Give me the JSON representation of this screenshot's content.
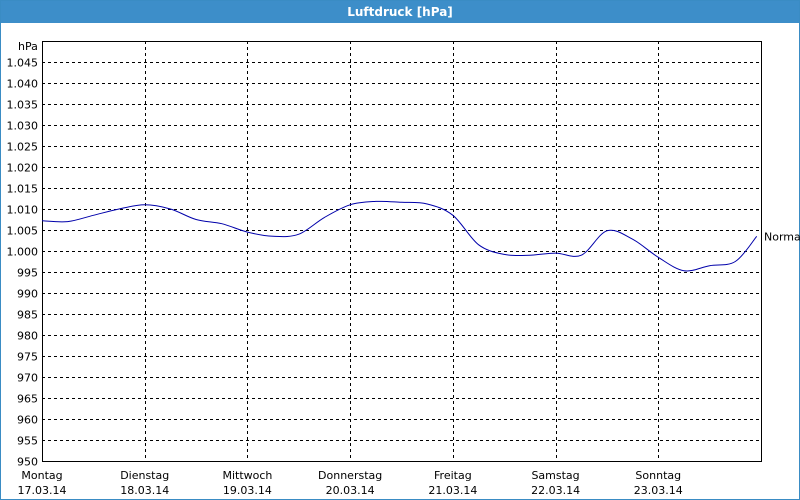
{
  "window": {
    "title": "Luftdruck [hPa]"
  },
  "chart_data": {
    "type": "line",
    "ylabel": "hPa",
    "ylim": [
      950,
      1050
    ],
    "yticks": [
      {
        "value": 950,
        "label": "950"
      },
      {
        "value": 955,
        "label": "955"
      },
      {
        "value": 960,
        "label": "960"
      },
      {
        "value": 965,
        "label": "965"
      },
      {
        "value": 970,
        "label": "970"
      },
      {
        "value": 975,
        "label": "975"
      },
      {
        "value": 980,
        "label": "980"
      },
      {
        "value": 985,
        "label": "985"
      },
      {
        "value": 990,
        "label": "990"
      },
      {
        "value": 995,
        "label": "995"
      },
      {
        "value": 1000,
        "label": "1.000"
      },
      {
        "value": 1005,
        "label": "1.005"
      },
      {
        "value": 1010,
        "label": "1.010"
      },
      {
        "value": 1015,
        "label": "1.015"
      },
      {
        "value": 1020,
        "label": "1.020"
      },
      {
        "value": 1025,
        "label": "1.025"
      },
      {
        "value": 1030,
        "label": "1.030"
      },
      {
        "value": 1035,
        "label": "1.035"
      },
      {
        "value": 1040,
        "label": "1.040"
      },
      {
        "value": 1045,
        "label": "1.045"
      }
    ],
    "xlim": [
      "17.03.14 00:00",
      "24.03.14 00:00"
    ],
    "xticks": [
      {
        "day": "Montag",
        "date": "17.03.14"
      },
      {
        "day": "Dienstag",
        "date": "18.03.14"
      },
      {
        "day": "Mittwoch",
        "date": "19.03.14"
      },
      {
        "day": "Donnerstag",
        "date": "20.03.14"
      },
      {
        "day": "Freitag",
        "date": "21.03.14"
      },
      {
        "day": "Samstag",
        "date": "22.03.14"
      },
      {
        "day": "Sonntag",
        "date": "23.03.14"
      }
    ],
    "grid": true,
    "line_color": "#0000aa",
    "annotation": "Normal",
    "series": [
      {
        "x": [
          "17.03.14 00:00",
          "17.03.14 06:00",
          "17.03.14 12:00",
          "17.03.14 18:00",
          "18.03.14 00:00",
          "18.03.14 06:00",
          "18.03.14 12:00",
          "18.03.14 18:00",
          "19.03.14 00:00",
          "19.03.14 06:00",
          "19.03.14 12:00",
          "19.03.14 18:00",
          "20.03.14 00:00",
          "20.03.14 06:00",
          "20.03.14 12:00",
          "20.03.14 18:00",
          "21.03.14 00:00",
          "21.03.14 06:00",
          "21.03.14 12:00",
          "21.03.14 18:00",
          "22.03.14 00:00",
          "22.03.14 06:00",
          "22.03.14 12:00",
          "22.03.14 18:00",
          "23.03.14 00:00",
          "23.03.14 06:00",
          "23.03.14 12:00",
          "23.03.14 18:00",
          "23.03.14 23:00"
        ],
        "y": [
          1007.2,
          1007.0,
          1008.5,
          1010.0,
          1011.0,
          1010.0,
          1007.5,
          1006.5,
          1004.5,
          1003.5,
          1004.0,
          1008.0,
          1011.0,
          1011.8,
          1011.6,
          1011.2,
          1008.5,
          1001.5,
          999.2,
          999.0,
          999.5,
          999.0,
          1004.8,
          1002.8,
          998.5,
          995.3,
          996.5,
          997.5,
          1003.5
        ]
      }
    ]
  }
}
